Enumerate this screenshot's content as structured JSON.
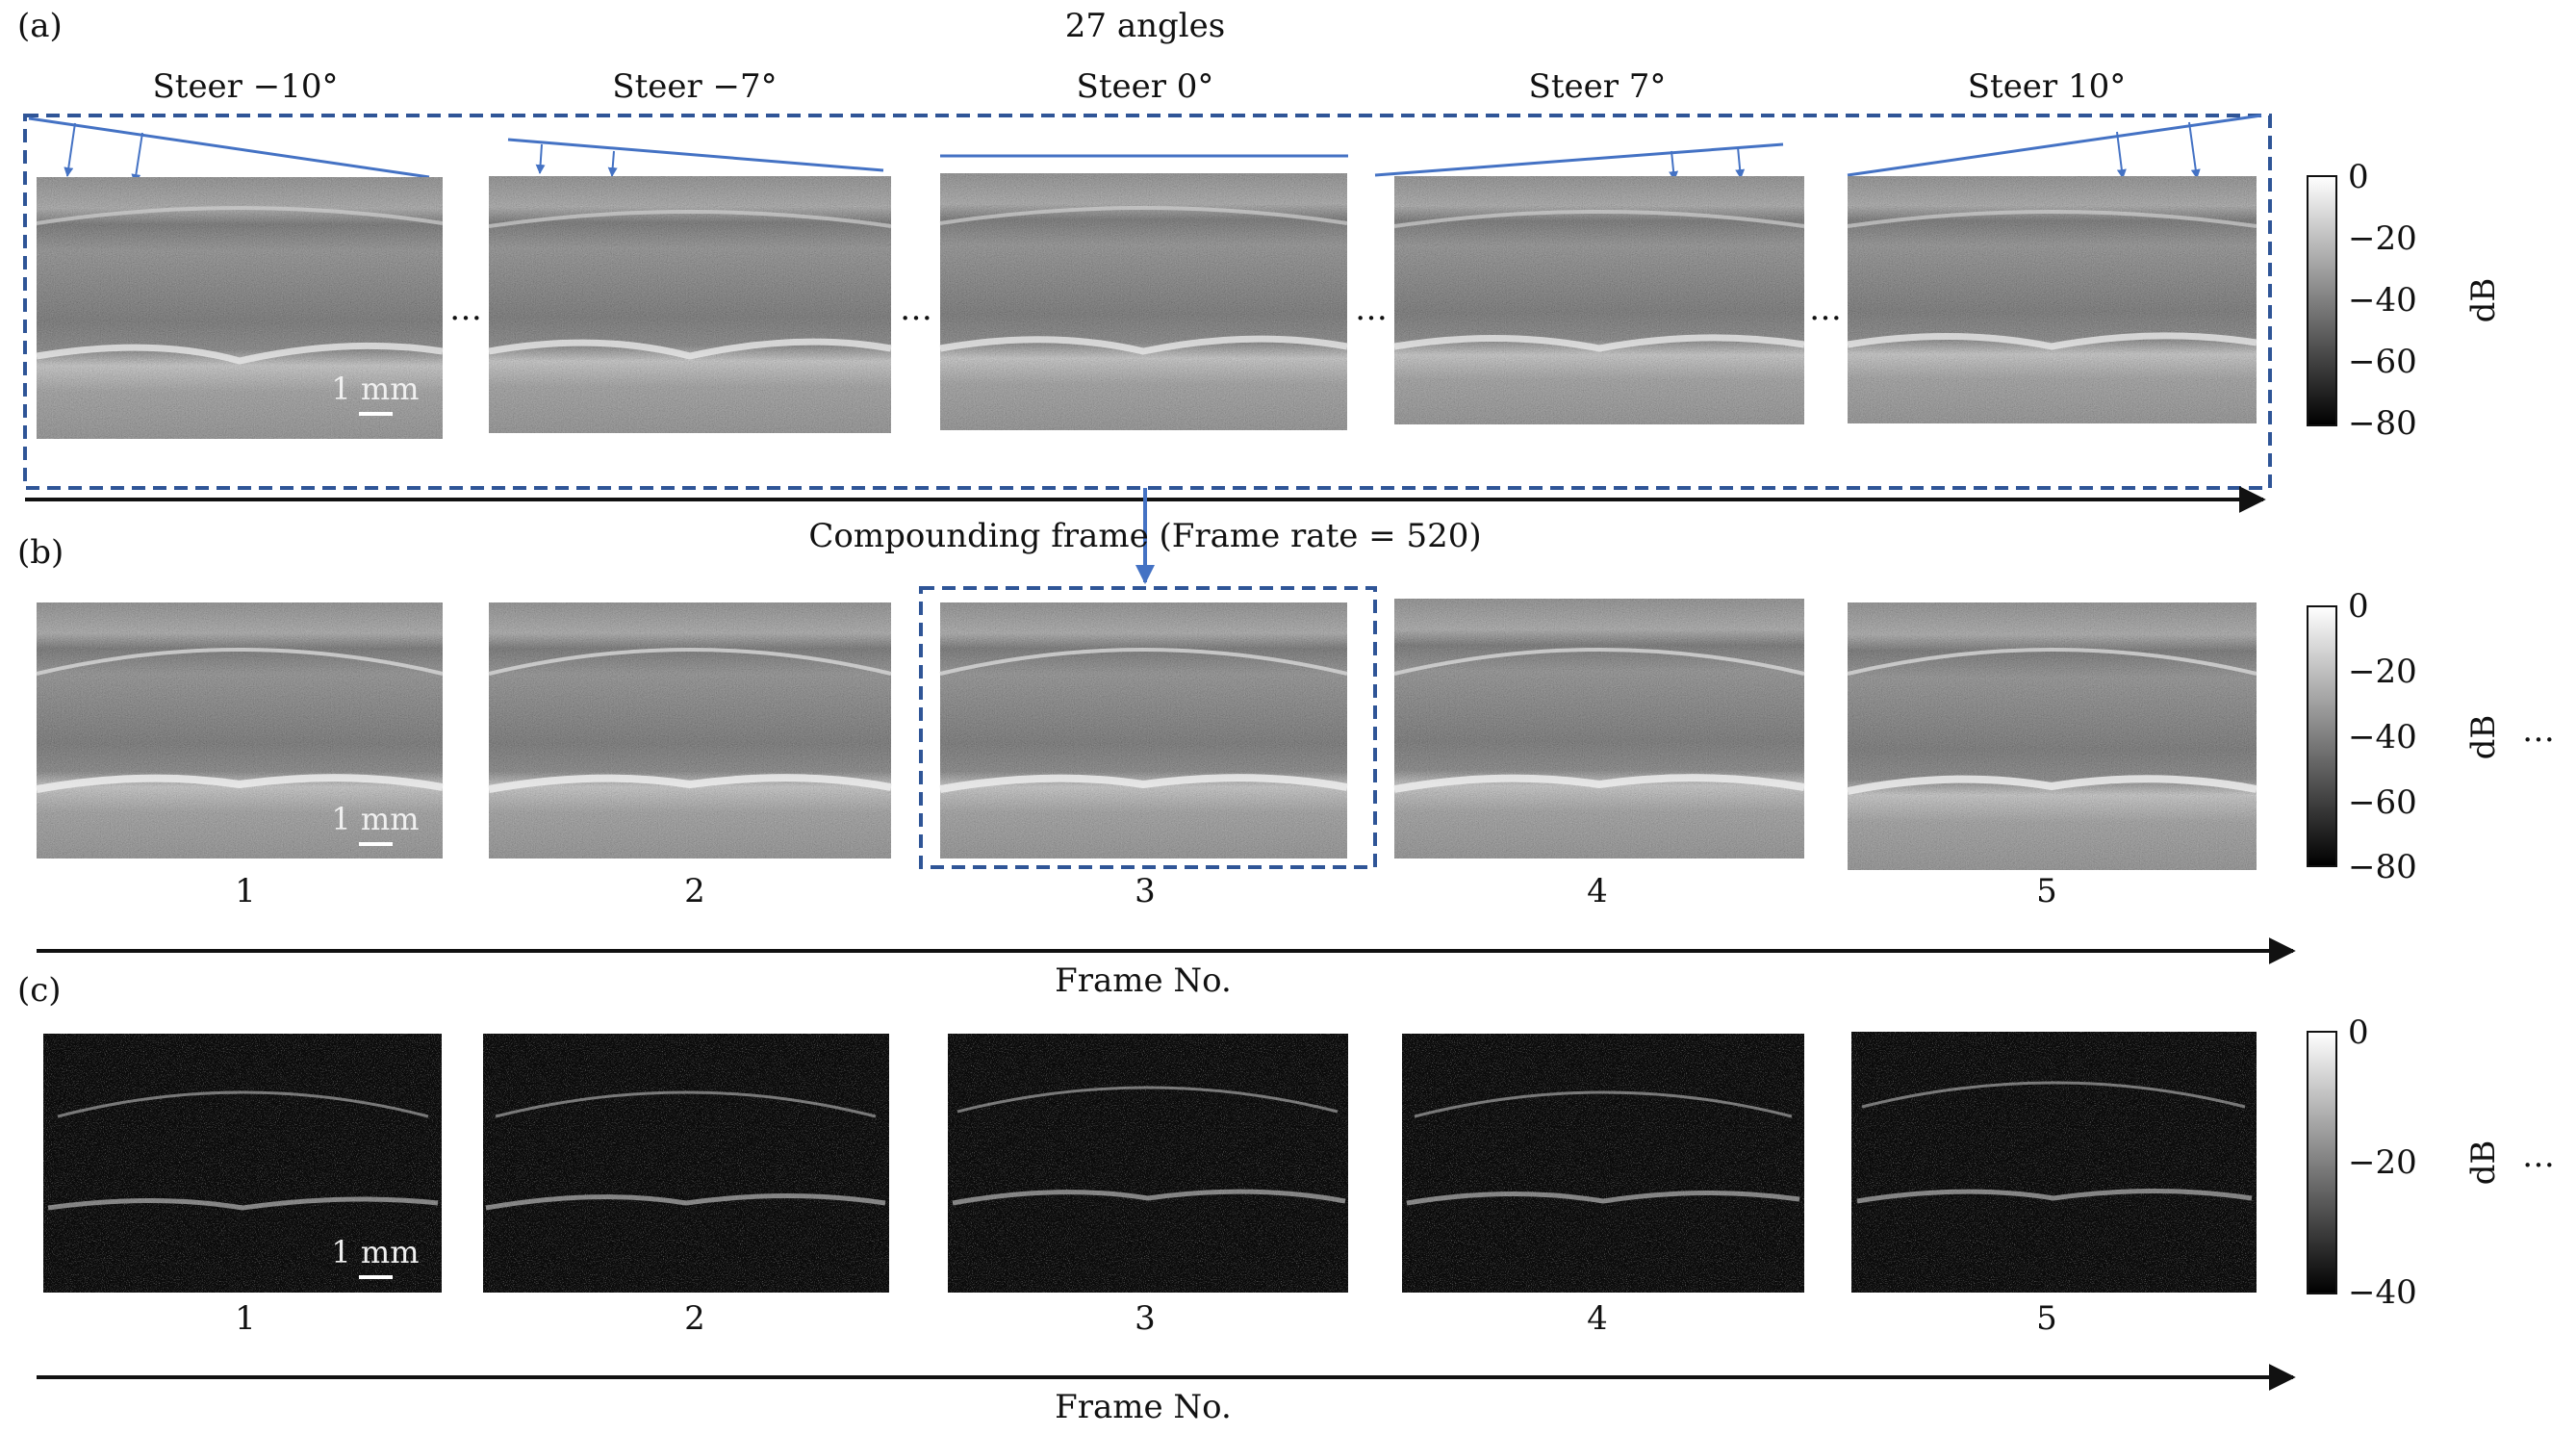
{
  "figure": {
    "panel_a": {
      "label": "(a)",
      "heading": "27 angles",
      "steer_labels": [
        "Steer −10°",
        "Steer −7°",
        "Steer 0°",
        "Steer 7°",
        "Steer 10°"
      ],
      "arrow_caption": "Compounding frame (Frame rate = 520)",
      "colorbar": {
        "ticks": [
          "0",
          "−20",
          "−40",
          "−60",
          "−80"
        ],
        "unit": "dB"
      }
    },
    "panel_b": {
      "label": "(b)",
      "frame_numbers": [
        "1",
        "2",
        "3",
        "4",
        "5"
      ],
      "axis_label": "Frame No.",
      "colorbar": {
        "ticks": [
          "0",
          "−20",
          "−40",
          "−60",
          "−80"
        ],
        "unit": "dB"
      }
    },
    "panel_c": {
      "label": "(c)",
      "frame_numbers": [
        "1",
        "2",
        "3",
        "4",
        "5"
      ],
      "axis_label": "Frame No.",
      "colorbar": {
        "ticks": [
          "0",
          "−20",
          "−40"
        ],
        "unit": "dB"
      }
    },
    "scale_bar": "1 mm",
    "ellipsis": "…",
    "colors": {
      "accent_blue": "#4472c4",
      "dashed_box": "#2f5597"
    }
  }
}
